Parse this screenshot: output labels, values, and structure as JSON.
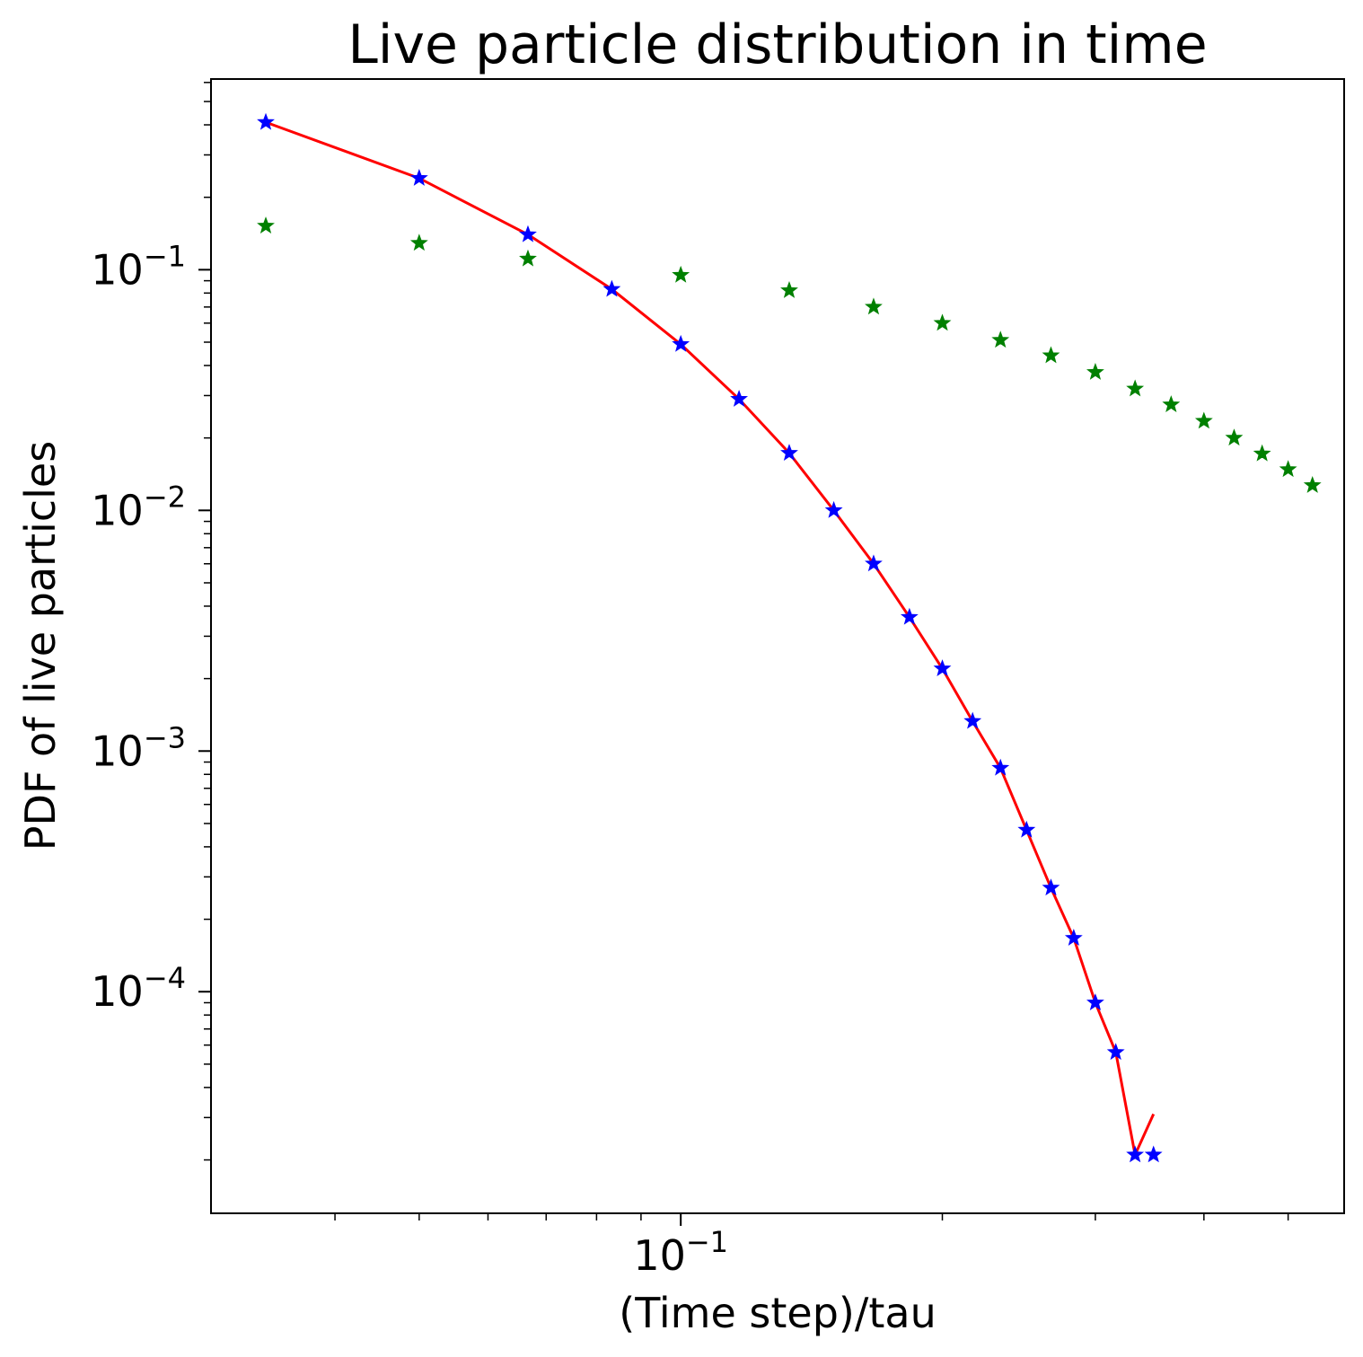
{
  "chart_data": {
    "type": "scatter",
    "title": "Live particle distribution in time",
    "xlabel": "(Time step)/tau",
    "ylabel": "PDF of live particles",
    "xscale": "log",
    "yscale": "log",
    "xlim": [
      0.0288,
      0.58
    ],
    "ylim": [
      1.2e-05,
      0.62
    ],
    "grid": false,
    "x_major_ticks": [
      {
        "value": 0.1,
        "base": "10",
        "exp": "−1"
      }
    ],
    "x_minor_ticks": [
      0.04,
      0.05,
      0.06,
      0.07,
      0.08,
      0.09,
      0.2,
      0.3,
      0.4,
      0.5
    ],
    "y_major_ticks": [
      {
        "value": 0.1,
        "base": "10",
        "exp": "−1"
      },
      {
        "value": 0.01,
        "base": "10",
        "exp": "−2"
      },
      {
        "value": 0.001,
        "base": "10",
        "exp": "−3"
      },
      {
        "value": 0.0001,
        "base": "10",
        "exp": "−4"
      }
    ],
    "series": [
      {
        "style": "markers",
        "marker": "star",
        "color": "#008000",
        "x": [
          0.0333,
          0.05,
          0.0667,
          0.1,
          0.1333,
          0.1667,
          0.2,
          0.2333,
          0.2667,
          0.3,
          0.3333,
          0.3667,
          0.4,
          0.4333,
          0.4667,
          0.5,
          0.5333
        ],
        "y": [
          0.152,
          0.129,
          0.111,
          0.095,
          0.082,
          0.07,
          0.06,
          0.051,
          0.044,
          0.0375,
          0.032,
          0.0275,
          0.0235,
          0.02,
          0.0172,
          0.0148,
          0.0127
        ]
      },
      {
        "style": "markers",
        "marker": "star",
        "color": "#0000ff",
        "x": [
          0.0333,
          0.05,
          0.0667,
          0.0833,
          0.1,
          0.1167,
          0.1333,
          0.15,
          0.1667,
          0.1833,
          0.2,
          0.2167,
          0.2333,
          0.25,
          0.2667,
          0.2833,
          0.3,
          0.3167,
          0.3333,
          0.35
        ],
        "y": [
          0.41,
          0.24,
          0.14,
          0.083,
          0.049,
          0.029,
          0.0173,
          0.01,
          0.006,
          0.0036,
          0.0022,
          0.00133,
          0.00085,
          0.00047,
          0.00027,
          0.000167,
          9e-05,
          5.6e-05,
          2.1e-05,
          2.1e-05
        ]
      },
      {
        "style": "line",
        "color": "#ff0000",
        "x": [
          0.0333,
          0.05,
          0.0667,
          0.0833,
          0.1,
          0.1167,
          0.1333,
          0.15,
          0.1667,
          0.1833,
          0.2,
          0.2167,
          0.2333,
          0.25,
          0.2667,
          0.2833,
          0.3,
          0.3167,
          0.3333,
          0.35
        ],
        "y": [
          0.41,
          0.24,
          0.14,
          0.083,
          0.049,
          0.029,
          0.0173,
          0.01,
          0.006,
          0.0036,
          0.0022,
          0.00133,
          0.00085,
          0.00047,
          0.00027,
          0.000167,
          9e-05,
          5.6e-05,
          2.1e-05,
          3.1e-05
        ]
      }
    ]
  }
}
